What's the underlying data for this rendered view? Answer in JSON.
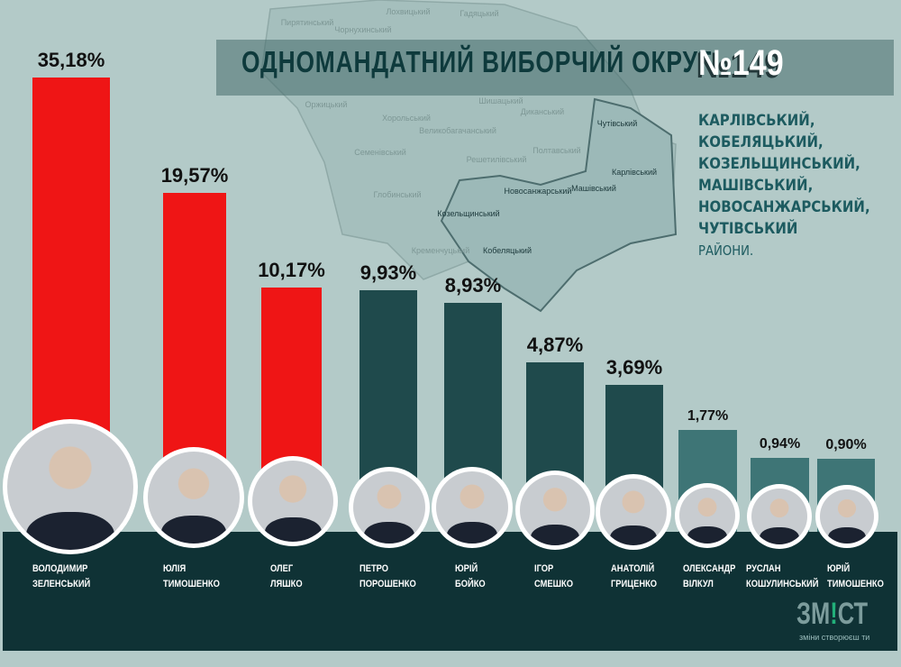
{
  "header": {
    "title": "Одномандатний виборчий округ",
    "number": "№149"
  },
  "districts": {
    "lines": [
      "Карлівський,",
      "Кобеляцький,",
      "Козельщинський,",
      "Машівський,",
      "Новосанжарський,",
      "Чутівський"
    ],
    "suffix": "райони."
  },
  "map_labels": [
    "Пирятинський",
    "Лохвицький",
    "Гадяцький",
    "Чорнухинський",
    "Оржицький",
    "Хорольський",
    "Шишацький",
    "Диканський",
    "Семенівський",
    "Великобагачанський",
    "Полтавський",
    "Решетилівський",
    "Глобинський",
    "Кременчуцький",
    "Козельщинський",
    "Новосанжарський",
    "Машівський",
    "Карлівський",
    "Чутівський",
    "Кобеляцький"
  ],
  "chart_data": {
    "type": "bar",
    "title": "",
    "xlabel": "",
    "ylabel": "",
    "categories": [
      "Володимир Зеленський",
      "Юлія Тимошенко",
      "Олег Ляшко",
      "Петро Порошенко",
      "Юрій Бойко",
      "Ігор Смешко",
      "Анатолій Гриценко",
      "Олександр Вілкул",
      "Руслан Кошулинський",
      "Юрій Тимошенко"
    ],
    "values": [
      35.18,
      19.57,
      10.17,
      9.93,
      8.93,
      4.87,
      3.69,
      1.77,
      0.94,
      0.9
    ],
    "labels": [
      "35,18%",
      "19,57%",
      "10,17%",
      "9,93%",
      "8,93%",
      "4,87%",
      "3,69%",
      "1,77%",
      "0,94%",
      "0,90%"
    ],
    "colors": {
      "top3": "#ef1515",
      "mid": "#1f4a4c",
      "low": "#3e7576"
    }
  },
  "candidates": [
    {
      "first": "Володимир",
      "last": "Зеленський"
    },
    {
      "first": "Юлія",
      "last": "Тимошенко"
    },
    {
      "first": "Олег",
      "last": "Ляшко"
    },
    {
      "first": "Петро",
      "last": "Порошенко"
    },
    {
      "first": "Юрій",
      "last": "Бойко"
    },
    {
      "first": "Ігор",
      "last": "Смешко"
    },
    {
      "first": "Анатолій",
      "last": "Гриценко"
    },
    {
      "first": "Олександр",
      "last": "Вілкул"
    },
    {
      "first": "Руслан",
      "last": "Кошулинський"
    },
    {
      "first": "Юрій",
      "last": "Тимошенко"
    }
  ],
  "logo": {
    "text_a": "ЗМ",
    "text_ex": "!",
    "text_b": "СТ",
    "slogan": "зміни створюєш ти"
  }
}
